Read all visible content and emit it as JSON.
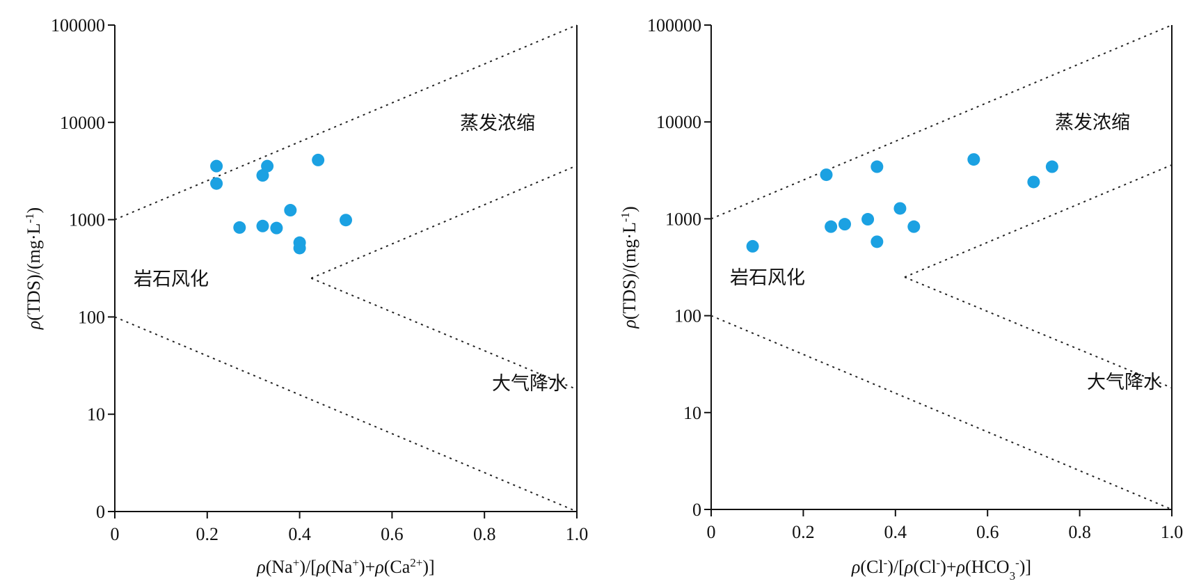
{
  "chart_data": [
    {
      "type": "scatter",
      "xlabel_parts": [
        "ρ",
        "(Na",
        "+",
        ")/[",
        "ρ",
        "(Na",
        "+",
        ")+",
        "ρ",
        "(Ca",
        "2+",
        ")]"
      ],
      "ylabel_parts": [
        "ρ",
        "(TDS)/(mg·L",
        "-1",
        ")"
      ],
      "xlim": [
        0,
        1.0
      ],
      "y_scale": "log",
      "y_ticks": [
        0,
        10,
        100,
        1000,
        10000,
        100000
      ],
      "x_ticks": [
        0,
        0.2,
        0.4,
        0.6,
        0.8,
        1.0
      ],
      "x_tick_labels": [
        "0",
        "0.2",
        "0.4",
        "0.6",
        "0.8",
        "1.0"
      ],
      "y_tick_labels": [
        "0",
        "10",
        "100",
        "1000",
        "10000",
        "100000"
      ],
      "marker_color": "#1ba1e2",
      "region_labels": [
        "蒸发浓缩",
        "岩石风化",
        "大气降水"
      ],
      "points": [
        {
          "x": 0.22,
          "y": 3550
        },
        {
          "x": 0.22,
          "y": 2350
        },
        {
          "x": 0.27,
          "y": 830
        },
        {
          "x": 0.32,
          "y": 2850
        },
        {
          "x": 0.33,
          "y": 3550
        },
        {
          "x": 0.32,
          "y": 860
        },
        {
          "x": 0.35,
          "y": 820
        },
        {
          "x": 0.38,
          "y": 1250
        },
        {
          "x": 0.4,
          "y": 580
        },
        {
          "x": 0.4,
          "y": 510
        },
        {
          "x": 0.44,
          "y": 4100
        },
        {
          "x": 0.5,
          "y": 990
        }
      ]
    },
    {
      "type": "scatter",
      "xlabel_parts": [
        "ρ",
        "(Cl",
        "-",
        ")/[",
        "ρ",
        "(Cl",
        "-",
        ")+",
        "ρ",
        "(HCO",
        "3",
        "-",
        ")]"
      ],
      "ylabel_parts": [
        "ρ",
        "(TDS)/(mg·L",
        "-1",
        ")"
      ],
      "xlim": [
        0,
        1.0
      ],
      "y_scale": "log",
      "y_ticks": [
        0,
        10,
        100,
        1000,
        10000,
        100000
      ],
      "x_ticks": [
        0,
        0.2,
        0.4,
        0.6,
        0.8,
        1.0
      ],
      "x_tick_labels": [
        "0",
        "0.2",
        "0.4",
        "0.6",
        "0.8",
        "1.0"
      ],
      "y_tick_labels": [
        "0",
        "10",
        "100",
        "1000",
        "10000",
        "100000"
      ],
      "marker_color": "#1ba1e2",
      "region_labels": [
        "蒸发浓缩",
        "岩石风化",
        "大气降水"
      ],
      "points": [
        {
          "x": 0.09,
          "y": 520
        },
        {
          "x": 0.25,
          "y": 2850
        },
        {
          "x": 0.26,
          "y": 830
        },
        {
          "x": 0.29,
          "y": 880
        },
        {
          "x": 0.34,
          "y": 990
        },
        {
          "x": 0.36,
          "y": 3450
        },
        {
          "x": 0.36,
          "y": 580
        },
        {
          "x": 0.41,
          "y": 1280
        },
        {
          "x": 0.44,
          "y": 830
        },
        {
          "x": 0.57,
          "y": 4100
        },
        {
          "x": 0.7,
          "y": 2400
        },
        {
          "x": 0.74,
          "y": 3450
        }
      ]
    }
  ]
}
